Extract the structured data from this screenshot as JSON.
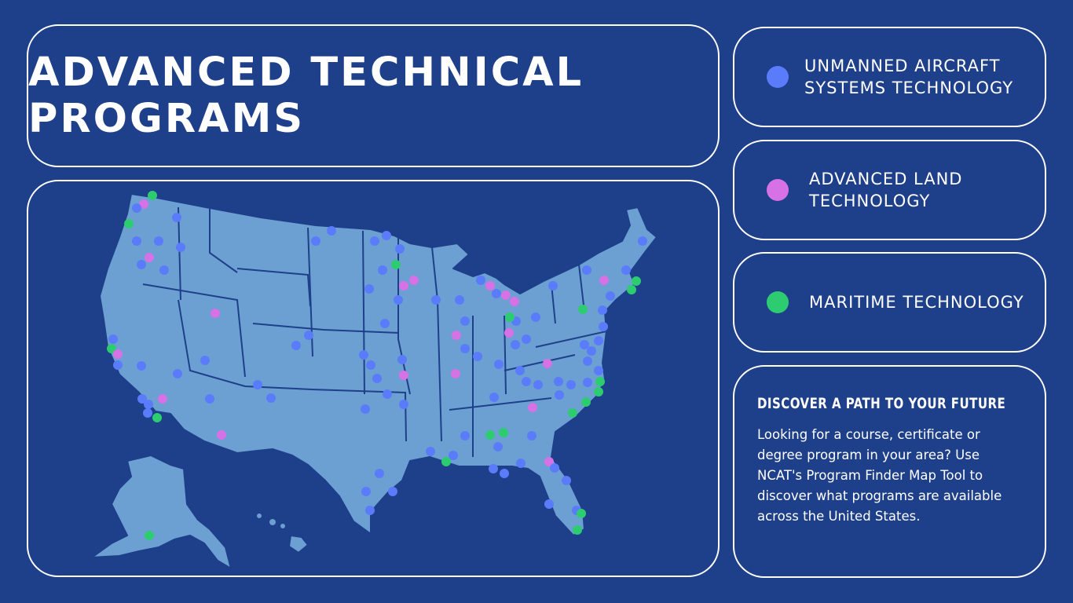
{
  "title": "ADVANCED TECHNICAL PROGRAMS",
  "legend": [
    {
      "label": "UNMANNED AIRCRAFT SYSTEMS TECHNOLOGY",
      "color": "#5b7cfa"
    },
    {
      "label": "ADVANCED LAND TECHNOLOGY",
      "color": "#d671e6"
    },
    {
      "label": "MARITIME TECHNOLOGY",
      "color": "#2ecc71"
    }
  ],
  "info": {
    "heading": "DISCOVER A PATH TO YOUR FUTURE",
    "body": "Looking for a course, certificate or degree program in your area? Use NCAT's Program Finder Map Tool to discover what programs are available across the United States."
  },
  "colors": {
    "background": "#1e3f89",
    "map_land": "#6c9fd2",
    "border": "#ffffff"
  }
}
